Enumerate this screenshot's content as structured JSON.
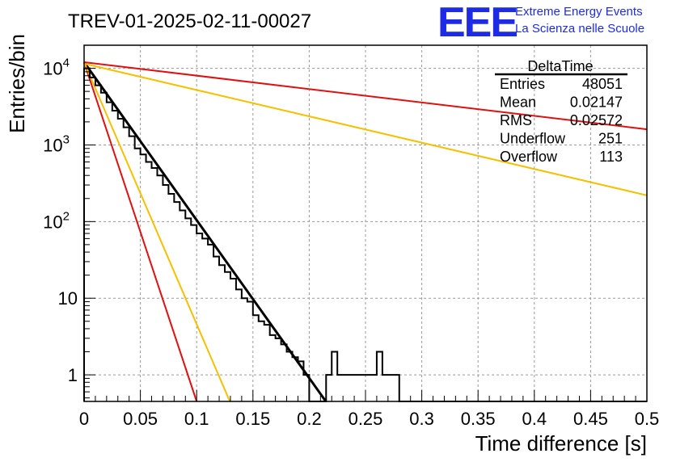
{
  "header": {
    "title": "TREV-01-2025-02-11-00027",
    "logo_text": "EEE",
    "logo_line1": "Extreme Energy Events",
    "logo_line2": "La Scienza nelle Scuole"
  },
  "stats": {
    "name": "DeltaTime",
    "rows": [
      {
        "label": "Entries",
        "value": "48051"
      },
      {
        "label": "Mean",
        "value": "0.02147"
      },
      {
        "label": "RMS",
        "value": "0.02572"
      },
      {
        "label": "Underflow",
        "value": "251"
      },
      {
        "label": "Overflow",
        "value": "113"
      }
    ]
  },
  "chart_data": {
    "type": "histogram",
    "title": "TREV-01-2025-02-11-00027",
    "xlabel": "Time difference [s]",
    "ylabel": "Entries/bin",
    "xlim": [
      0,
      0.5
    ],
    "ylim": [
      0.45,
      20000
    ],
    "yscale": "log",
    "grid": true,
    "x_ticks": [
      "0",
      "0.05",
      "0.1",
      "0.15",
      "0.2",
      "0.25",
      "0.3",
      "0.35",
      "0.4",
      "0.45",
      "0.5"
    ],
    "y_ticks": [
      {
        "value": 1,
        "base": "1",
        "exp": ""
      },
      {
        "value": 10,
        "base": "10",
        "exp": ""
      },
      {
        "value": 100,
        "base": "10",
        "exp": "2"
      },
      {
        "value": 1000,
        "base": "10",
        "exp": "3"
      },
      {
        "value": 10000,
        "base": "10",
        "exp": "4"
      }
    ],
    "histogram": {
      "bin_width": 0.005,
      "x_start": 0,
      "values": [
        10000,
        7600,
        6000,
        4800,
        3600,
        2800,
        2200,
        1700,
        1300,
        900,
        750,
        600,
        500,
        400,
        300,
        230,
        180,
        140,
        110,
        90,
        70,
        60,
        50,
        35,
        27,
        22,
        18,
        13,
        10,
        9,
        6,
        5,
        4.5,
        3.3,
        3,
        2.5,
        2,
        1.7,
        1.5,
        1,
        0.45,
        0.45,
        0.45,
        1,
        2,
        1,
        1,
        1,
        1,
        1,
        1,
        1,
        2,
        1,
        1,
        1,
        0.45,
        0.45,
        0.45,
        0.45,
        0.45,
        0.45,
        0.45,
        0.45,
        0.45,
        0.45,
        0.45,
        0.45,
        0.45,
        0.45,
        0.45,
        0.45,
        0.45,
        0.45,
        0.45,
        0.45,
        0.45,
        0.45,
        0.45,
        0.45,
        0.45,
        0.45,
        0.45,
        0.45,
        0.45,
        0.45,
        0.45,
        0.45,
        0.45,
        0.45,
        0.45,
        0.45,
        0.45,
        0.45,
        0.45,
        0.45,
        0.45,
        0.45,
        0.45,
        0.45
      ],
      "color": "#000000"
    },
    "fits": [
      {
        "color": "#000000",
        "points": [
          [
            0,
            12000
          ],
          [
            0.2148,
            0.45
          ]
        ]
      },
      {
        "color": "#e01010",
        "points": [
          [
            0,
            12000
          ],
          [
            0.1,
            0.45
          ]
        ]
      },
      {
        "color": "#f5c000",
        "points": [
          [
            0,
            12000
          ],
          [
            0.1295,
            0.45
          ]
        ]
      },
      {
        "color": "#f5c000",
        "points": [
          [
            0,
            11500
          ],
          [
            0.5,
            220
          ]
        ]
      },
      {
        "color": "#e01010",
        "points": [
          [
            0,
            12000
          ],
          [
            0.5,
            1600
          ]
        ]
      }
    ]
  }
}
